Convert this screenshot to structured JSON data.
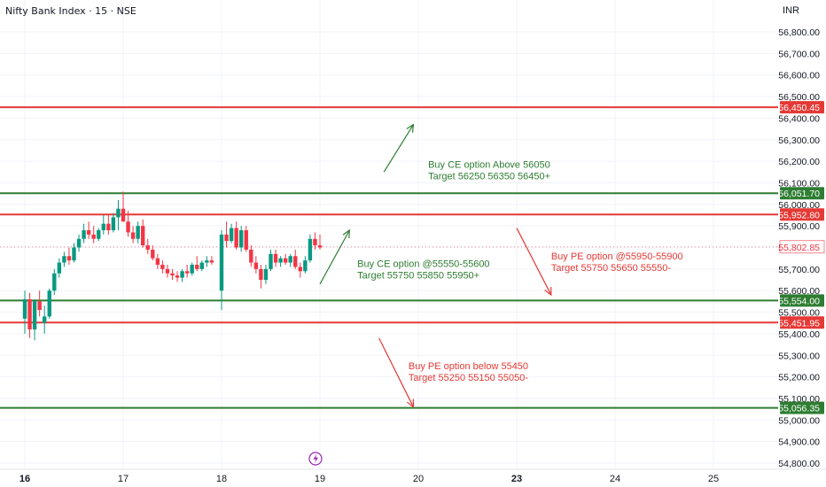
{
  "header": {
    "title": "Nifty Bank Index · 15 · NSE",
    "currency": "INR"
  },
  "colors": {
    "bull": "#089981",
    "bear": "#f23645",
    "buy_line": "#2e7d32",
    "sell_line": "#e53935",
    "grid": "#f0f3fa",
    "axis_text": "#131722",
    "current_price_label": "#f23645",
    "bolt_icon": "#9c27b0"
  },
  "chart_data": {
    "type": "candlestick",
    "ylim": [
      54750,
      56900
    ],
    "y_ticks": [
      "54,800.00",
      "54,900.00",
      "55,000.00",
      "55,100.00",
      "55,200.00",
      "55,300.00",
      "55,400.00",
      "55,500.00",
      "55,600.00",
      "55,700.00",
      "55,800.00",
      "55,900.00",
      "56,000.00",
      "56,100.00",
      "56,200.00",
      "56,300.00",
      "56,400.00",
      "56,500.00",
      "56,600.00",
      "56,700.00",
      "56,800.00"
    ],
    "y_tick_values": [
      54800,
      54900,
      55000,
      55100,
      55200,
      55300,
      55400,
      55500,
      55600,
      55700,
      55800,
      55900,
      56000,
      56100,
      56200,
      56300,
      56400,
      56500,
      56600,
      56700,
      56800
    ],
    "x_ticks": [
      {
        "label": "16",
        "bold": true,
        "session": 0
      },
      {
        "label": "17",
        "bold": false,
        "session": 1
      },
      {
        "label": "18",
        "bold": false,
        "session": 2
      },
      {
        "label": "19",
        "bold": false,
        "session": 3
      },
      {
        "label": "20",
        "bold": false,
        "session": 4
      },
      {
        "label": "23",
        "bold": true,
        "session": 5
      },
      {
        "label": "24",
        "bold": false,
        "session": 6
      },
      {
        "label": "25",
        "bold": false,
        "session": 7
      }
    ],
    "candles": [
      {
        "session": 0,
        "o": 55470,
        "h": 55600,
        "l": 55400,
        "c": 55560
      },
      {
        "session": 0.05,
        "o": 55560,
        "h": 55590,
        "l": 55380,
        "c": 55420
      },
      {
        "session": 0.1,
        "o": 55420,
        "h": 55560,
        "l": 55370,
        "c": 55550
      },
      {
        "session": 0.15,
        "o": 55550,
        "h": 55600,
        "l": 55480,
        "c": 55510
      },
      {
        "session": 0.2,
        "o": 55450,
        "h": 55530,
        "l": 55400,
        "c": 55480
      },
      {
        "session": 0.25,
        "o": 55480,
        "h": 55610,
        "l": 55470,
        "c": 55600
      },
      {
        "session": 0.3,
        "o": 55600,
        "h": 55700,
        "l": 55580,
        "c": 55680
      },
      {
        "session": 0.35,
        "o": 55680,
        "h": 55750,
        "l": 55660,
        "c": 55730
      },
      {
        "session": 0.4,
        "o": 55730,
        "h": 55780,
        "l": 55710,
        "c": 55760
      },
      {
        "session": 0.45,
        "o": 55760,
        "h": 55800,
        "l": 55720,
        "c": 55740
      },
      {
        "session": 0.5,
        "o": 55740,
        "h": 55820,
        "l": 55730,
        "c": 55800
      },
      {
        "session": 0.55,
        "o": 55800,
        "h": 55860,
        "l": 55780,
        "c": 55840
      },
      {
        "session": 0.6,
        "o": 55840,
        "h": 55910,
        "l": 55820,
        "c": 55880
      },
      {
        "session": 0.65,
        "o": 55880,
        "h": 55920,
        "l": 55840,
        "c": 55860
      },
      {
        "session": 0.7,
        "o": 55860,
        "h": 55900,
        "l": 55820,
        "c": 55840
      },
      {
        "session": 0.75,
        "o": 55840,
        "h": 55890,
        "l": 55830,
        "c": 55880
      },
      {
        "session": 0.8,
        "o": 55880,
        "h": 55950,
        "l": 55860,
        "c": 55910
      },
      {
        "session": 0.85,
        "o": 55910,
        "h": 55950,
        "l": 55860,
        "c": 55880
      },
      {
        "session": 0.9,
        "o": 55880,
        "h": 55960,
        "l": 55870,
        "c": 55940
      },
      {
        "session": 0.95,
        "o": 55940,
        "h": 56020,
        "l": 55880,
        "c": 55980
      },
      {
        "session": 1.0,
        "o": 55980,
        "h": 56060,
        "l": 55930,
        "c": 55920
      },
      {
        "session": 1.05,
        "o": 55920,
        "h": 55970,
        "l": 55850,
        "c": 55870
      },
      {
        "session": 1.1,
        "o": 55870,
        "h": 55900,
        "l": 55820,
        "c": 55840
      },
      {
        "session": 1.15,
        "o": 55840,
        "h": 55920,
        "l": 55820,
        "c": 55900
      },
      {
        "session": 1.2,
        "o": 55900,
        "h": 55930,
        "l": 55800,
        "c": 55810
      },
      {
        "session": 1.25,
        "o": 55810,
        "h": 55840,
        "l": 55770,
        "c": 55790
      },
      {
        "session": 1.3,
        "o": 55790,
        "h": 55810,
        "l": 55740,
        "c": 55750
      },
      {
        "session": 1.35,
        "o": 55750,
        "h": 55770,
        "l": 55700,
        "c": 55720
      },
      {
        "session": 1.4,
        "o": 55720,
        "h": 55740,
        "l": 55680,
        "c": 55700
      },
      {
        "session": 1.45,
        "o": 55700,
        "h": 55720,
        "l": 55660,
        "c": 55680
      },
      {
        "session": 1.5,
        "o": 55680,
        "h": 55700,
        "l": 55650,
        "c": 55670
      },
      {
        "session": 1.55,
        "o": 55670,
        "h": 55690,
        "l": 55640,
        "c": 55660
      },
      {
        "session": 1.6,
        "o": 55660,
        "h": 55700,
        "l": 55640,
        "c": 55690
      },
      {
        "session": 1.65,
        "o": 55690,
        "h": 55720,
        "l": 55660,
        "c": 55680
      },
      {
        "session": 1.7,
        "o": 55680,
        "h": 55730,
        "l": 55670,
        "c": 55720
      },
      {
        "session": 1.75,
        "o": 55720,
        "h": 55760,
        "l": 55690,
        "c": 55700
      },
      {
        "session": 1.8,
        "o": 55700,
        "h": 55740,
        "l": 55690,
        "c": 55730
      },
      {
        "session": 1.85,
        "o": 55730,
        "h": 55760,
        "l": 55710,
        "c": 55740
      },
      {
        "session": 1.9,
        "o": 55740,
        "h": 55760,
        "l": 55720,
        "c": 55730
      },
      {
        "session": 2.0,
        "o": 55600,
        "h": 55880,
        "l": 55510,
        "c": 55860
      },
      {
        "session": 2.05,
        "o": 55860,
        "h": 55920,
        "l": 55800,
        "c": 55830
      },
      {
        "session": 2.1,
        "o": 55830,
        "h": 55910,
        "l": 55820,
        "c": 55890
      },
      {
        "session": 2.15,
        "o": 55890,
        "h": 55920,
        "l": 55790,
        "c": 55800
      },
      {
        "session": 2.2,
        "o": 55800,
        "h": 55900,
        "l": 55780,
        "c": 55880
      },
      {
        "session": 2.25,
        "o": 55880,
        "h": 55900,
        "l": 55780,
        "c": 55790
      },
      {
        "session": 2.3,
        "o": 55790,
        "h": 55810,
        "l": 55710,
        "c": 55730
      },
      {
        "session": 2.35,
        "o": 55730,
        "h": 55760,
        "l": 55680,
        "c": 55700
      },
      {
        "session": 2.4,
        "o": 55700,
        "h": 55720,
        "l": 55610,
        "c": 55650
      },
      {
        "session": 2.45,
        "o": 55650,
        "h": 55720,
        "l": 55630,
        "c": 55700
      },
      {
        "session": 2.5,
        "o": 55700,
        "h": 55790,
        "l": 55690,
        "c": 55770
      },
      {
        "session": 2.55,
        "o": 55770,
        "h": 55790,
        "l": 55710,
        "c": 55730
      },
      {
        "session": 2.6,
        "o": 55730,
        "h": 55760,
        "l": 55710,
        "c": 55750
      },
      {
        "session": 2.65,
        "o": 55750,
        "h": 55770,
        "l": 55720,
        "c": 55730
      },
      {
        "session": 2.7,
        "o": 55730,
        "h": 55770,
        "l": 55710,
        "c": 55760
      },
      {
        "session": 2.75,
        "o": 55760,
        "h": 55790,
        "l": 55700,
        "c": 55710
      },
      {
        "session": 2.8,
        "o": 55710,
        "h": 55730,
        "l": 55660,
        "c": 55690
      },
      {
        "session": 2.85,
        "o": 55690,
        "h": 55760,
        "l": 55680,
        "c": 55740
      },
      {
        "session": 2.9,
        "o": 55740,
        "h": 55860,
        "l": 55730,
        "c": 55840
      },
      {
        "session": 2.95,
        "o": 55840,
        "h": 55870,
        "l": 55790,
        "c": 55810
      },
      {
        "session": 3.0,
        "o": 55810,
        "h": 55860,
        "l": 55790,
        "c": 55800
      }
    ],
    "hlines": [
      {
        "value": 56450.45,
        "label": "56,450.45",
        "color": "#e53935"
      },
      {
        "value": 56051.7,
        "label": "56,051.70",
        "color": "#2e7d32"
      },
      {
        "value": 55952.8,
        "label": "55,952.80",
        "color": "#e53935"
      },
      {
        "value": 55554.0,
        "label": "55,554.00",
        "color": "#2e7d32"
      },
      {
        "value": 55451.95,
        "label": "55,451.95",
        "color": "#e53935"
      },
      {
        "value": 55056.35,
        "label": "55,056.35",
        "color": "#2e7d32"
      }
    ],
    "current_price": {
      "value": 55802.85,
      "label": "55,802.85"
    },
    "annotations": [
      {
        "lines": [
          "Buy CE option Above 56050",
          "Target 56250 56350 56450+"
        ],
        "color": "#2e7d32",
        "session": 4.1,
        "value": 56170
      },
      {
        "lines": [
          "Buy CE option @55550-55600",
          "Target 55750 55850 55950+"
        ],
        "color": "#2e7d32",
        "session": 3.38,
        "value": 55710
      },
      {
        "lines": [
          "Buy PE option @55950-55900",
          "Target 55750 55650 55550-"
        ],
        "color": "#e53935",
        "session": 5.35,
        "value": 55745
      },
      {
        "lines": [
          "Buy PE option below 55450",
          "Target 55250 55150 55050-"
        ],
        "color": "#e53935",
        "session": 3.9,
        "value": 55235
      }
    ],
    "arrows": [
      {
        "from": [
          3.65,
          56150
        ],
        "to": [
          3.95,
          56370
        ],
        "color": "#2e7d32"
      },
      {
        "from": [
          3.0,
          55630
        ],
        "to": [
          3.3,
          55880
        ],
        "color": "#2e7d32"
      },
      {
        "from": [
          5.0,
          55890
        ],
        "to": [
          5.35,
          55580
        ],
        "color": "#e53935"
      },
      {
        "from": [
          3.6,
          55380
        ],
        "to": [
          3.95,
          55060
        ],
        "color": "#e53935"
      }
    ]
  }
}
